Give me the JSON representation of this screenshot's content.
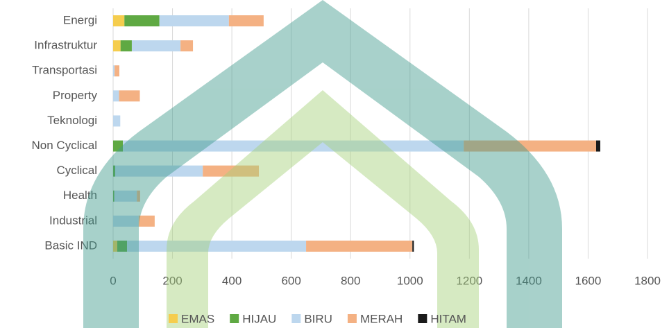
{
  "chart_data": {
    "type": "bar",
    "orientation": "horizontal",
    "stacked": true,
    "categories": [
      "Energi",
      "Infrastruktur",
      "Transportasi",
      "Property",
      "Teknologi",
      "Non Cyclical",
      "Cyclical",
      "Health",
      "Industrial",
      "Basic IND"
    ],
    "series": [
      {
        "name": "EMAS",
        "color": "#f5cd4e",
        "values": [
          38,
          25,
          0,
          0,
          0,
          0,
          0,
          0,
          0,
          14
        ]
      },
      {
        "name": "HIJAU",
        "color": "#5fa943",
        "values": [
          118,
          38,
          0,
          0,
          0,
          33,
          7,
          4,
          0,
          33
        ]
      },
      {
        "name": "BIRU",
        "color": "#bdd7ee",
        "values": [
          234,
          164,
          5,
          20,
          24,
          1148,
          295,
          76,
          86,
          603
        ]
      },
      {
        "name": "MERAH",
        "color": "#f4b183",
        "values": [
          117,
          42,
          16,
          70,
          0,
          446,
          189,
          11,
          54,
          358
        ]
      },
      {
        "name": "HITAM",
        "color": "#1a1a1a",
        "values": [
          0,
          0,
          0,
          0,
          0,
          14,
          0,
          0,
          0,
          5
        ]
      }
    ],
    "xlim": [
      0,
      1800
    ],
    "xticks": [
      0,
      200,
      400,
      600,
      800,
      1000,
      1200,
      1400,
      1600,
      1800
    ],
    "grid": true,
    "legend": "bottom"
  }
}
